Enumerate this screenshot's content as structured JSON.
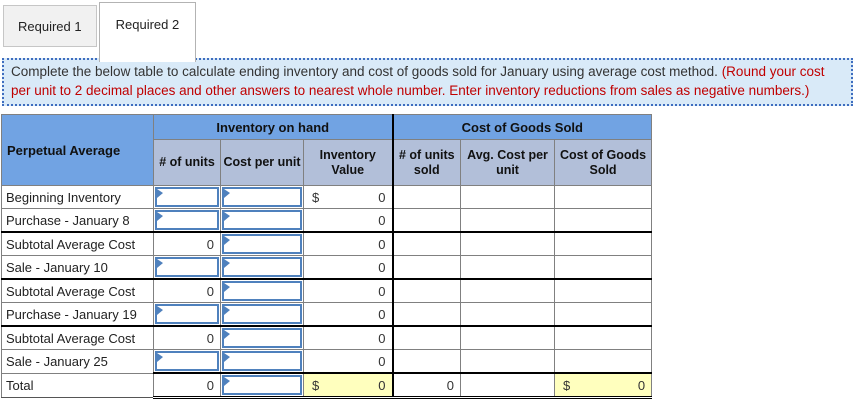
{
  "tabs": [
    {
      "label": "Required 1",
      "active": false
    },
    {
      "label": "Required 2",
      "active": true
    }
  ],
  "instruction": {
    "text": "Complete the below table to calculate ending inventory and cost of goods sold for January using average cost method. ",
    "emphasis": "(Round your cost per unit to 2 decimal places and other answers to nearest whole number. Enter inventory reductions from sales as negative numbers.)"
  },
  "table": {
    "corner": "Perpetual Average",
    "groups": [
      "Inventory on hand",
      "Cost of Goods Sold"
    ],
    "columns": [
      "# of units",
      "Cost per unit",
      "Inventory Value",
      "# of units sold",
      "Avg. Cost per unit",
      "Cost of Goods Sold"
    ],
    "currency": "$",
    "rows": [
      {
        "label": "Beginning Inventory",
        "cells": [
          {
            "t": "input"
          },
          {
            "t": "input"
          },
          {
            "t": "money",
            "v": "0"
          },
          {
            "t": "empty"
          },
          {
            "t": "empty"
          },
          {
            "t": "empty"
          }
        ]
      },
      {
        "label": "Purchase - January 8",
        "cells": [
          {
            "t": "input"
          },
          {
            "t": "input"
          },
          {
            "t": "num",
            "v": "0"
          },
          {
            "t": "empty"
          },
          {
            "t": "empty"
          },
          {
            "t": "empty"
          }
        ]
      },
      {
        "label": "Subtotal Average Cost",
        "emphasis": true,
        "cells": [
          {
            "t": "num",
            "v": "0"
          },
          {
            "t": "input"
          },
          {
            "t": "num",
            "v": "0"
          },
          {
            "t": "empty"
          },
          {
            "t": "empty"
          },
          {
            "t": "empty"
          }
        ]
      },
      {
        "label": "Sale - January 10",
        "cells": [
          {
            "t": "input"
          },
          {
            "t": "input"
          },
          {
            "t": "num",
            "v": "0"
          },
          {
            "t": "empty"
          },
          {
            "t": "empty"
          },
          {
            "t": "empty"
          }
        ]
      },
      {
        "label": "Subtotal Average Cost",
        "emphasis": true,
        "cells": [
          {
            "t": "num",
            "v": "0"
          },
          {
            "t": "input"
          },
          {
            "t": "num",
            "v": "0"
          },
          {
            "t": "empty"
          },
          {
            "t": "empty"
          },
          {
            "t": "empty"
          }
        ]
      },
      {
        "label": "Purchase - January 19",
        "cells": [
          {
            "t": "input"
          },
          {
            "t": "input"
          },
          {
            "t": "num",
            "v": "0"
          },
          {
            "t": "empty"
          },
          {
            "t": "empty"
          },
          {
            "t": "empty"
          }
        ]
      },
      {
        "label": "Subtotal Average Cost",
        "emphasis": true,
        "cells": [
          {
            "t": "num",
            "v": "0"
          },
          {
            "t": "input"
          },
          {
            "t": "num",
            "v": "0"
          },
          {
            "t": "empty"
          },
          {
            "t": "empty"
          },
          {
            "t": "empty"
          }
        ]
      },
      {
        "label": "Sale - January 25",
        "cells": [
          {
            "t": "input"
          },
          {
            "t": "input"
          },
          {
            "t": "num",
            "v": "0"
          },
          {
            "t": "empty"
          },
          {
            "t": "empty"
          },
          {
            "t": "empty"
          }
        ]
      },
      {
        "label": "Total",
        "total": true,
        "cells": [
          {
            "t": "num",
            "v": "0"
          },
          {
            "t": "input"
          },
          {
            "t": "money",
            "v": "0",
            "hl": true
          },
          {
            "t": "num",
            "v": "0"
          },
          {
            "t": "empty"
          },
          {
            "t": "money",
            "v": "0",
            "hl": true
          }
        ]
      }
    ]
  },
  "colors": {
    "header_blue": "#71a3e3",
    "subheader_blue": "#b2bfd9",
    "input_border_blue": "#4f81bd",
    "highlight_yellow": "#ffffbe",
    "instruction_bg": "#d9eaf8",
    "instruction_border": "#3e6dbf",
    "emphasis_red": "#c00000"
  }
}
